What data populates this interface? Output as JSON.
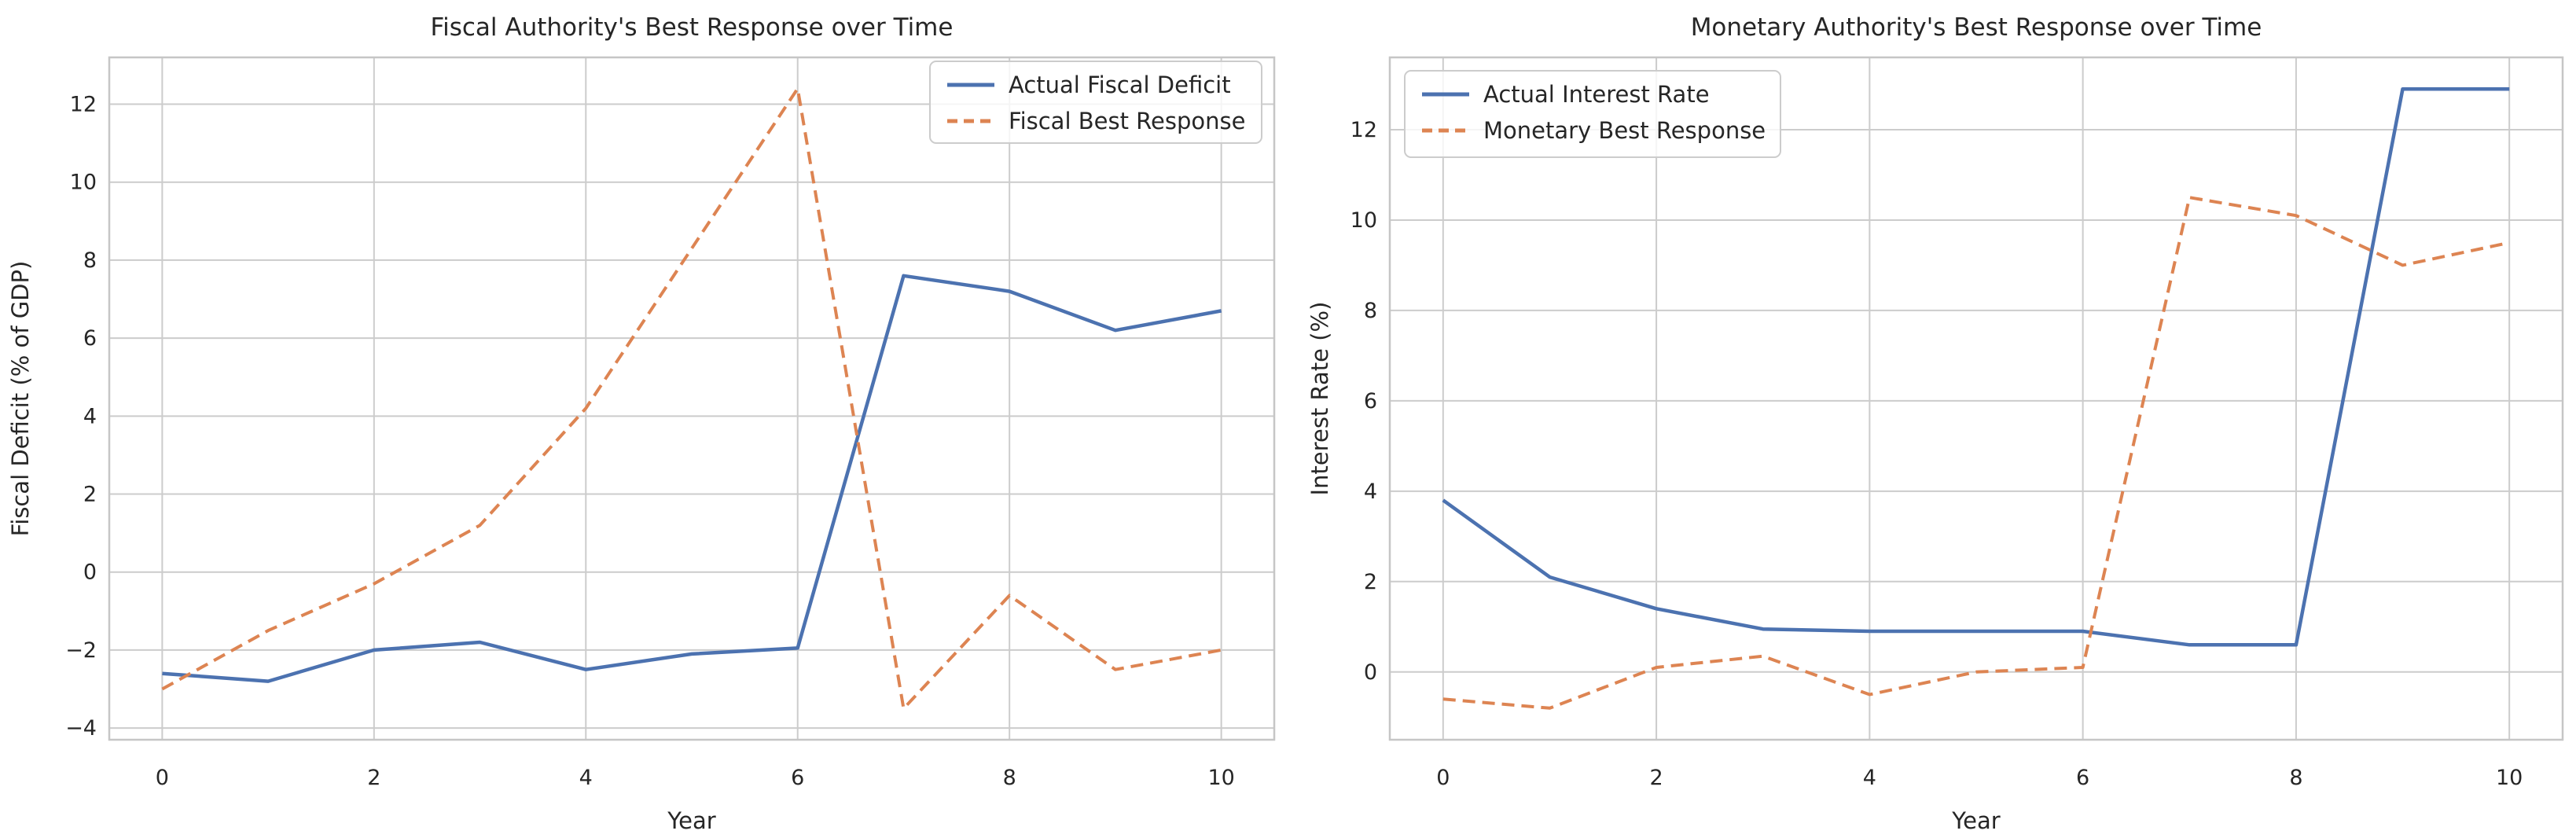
{
  "colors": {
    "blue": "#4C72B0",
    "orange": "#DD8452",
    "grid": "#cccccc",
    "spine": "#c6c6c6",
    "text": "#262626",
    "legend_border": "#cccccc",
    "background": "#ffffff"
  },
  "chart_data": [
    {
      "type": "line",
      "title": "Fiscal Authority's Best Response over Time",
      "xlabel": "Year",
      "ylabel": "Fiscal Deficit (% of GDP)",
      "x": [
        0,
        1,
        2,
        3,
        4,
        5,
        6,
        7,
        8,
        9,
        10
      ],
      "xlim": [
        -0.5,
        10.5
      ],
      "ylim": [
        -4.3,
        13.2
      ],
      "xticks": [
        0,
        2,
        4,
        6,
        8,
        10
      ],
      "xtick_labels": [
        "0",
        "2",
        "4",
        "6",
        "8",
        "10"
      ],
      "yticks": [
        -4,
        -2,
        0,
        2,
        4,
        6,
        8,
        10,
        12
      ],
      "ytick_labels": [
        "−4",
        "−2",
        "0",
        "2",
        "4",
        "6",
        "8",
        "10",
        "12"
      ],
      "grid": true,
      "legend_position": "upper right",
      "series": [
        {
          "name": "Actual Fiscal Deficit",
          "style": "solid",
          "color_key": "blue",
          "values": [
            -2.6,
            -2.8,
            -2.0,
            -1.8,
            -2.5,
            -2.1,
            -1.95,
            7.6,
            7.2,
            6.2,
            6.7
          ]
        },
        {
          "name": "Fiscal Best Response",
          "style": "dashed",
          "color_key": "orange",
          "values": [
            -3.0,
            -1.5,
            -0.3,
            1.2,
            4.2,
            8.3,
            12.4,
            -3.5,
            -0.6,
            -2.5,
            -2.0
          ]
        }
      ]
    },
    {
      "type": "line",
      "title": "Monetary Authority's Best Response over Time",
      "xlabel": "Year",
      "ylabel": "Interest Rate (%)",
      "x": [
        0,
        1,
        2,
        3,
        4,
        5,
        6,
        7,
        8,
        9,
        10
      ],
      "xlim": [
        -0.5,
        10.5
      ],
      "ylim": [
        -1.5,
        13.6
      ],
      "xticks": [
        0,
        2,
        4,
        6,
        8,
        10
      ],
      "xtick_labels": [
        "0",
        "2",
        "4",
        "6",
        "8",
        "10"
      ],
      "yticks": [
        0,
        2,
        4,
        6,
        8,
        10,
        12
      ],
      "ytick_labels": [
        "0",
        "2",
        "4",
        "6",
        "8",
        "10",
        "12"
      ],
      "grid": true,
      "legend_position": "upper left",
      "series": [
        {
          "name": "Actual Interest Rate",
          "style": "solid",
          "color_key": "blue",
          "values": [
            3.8,
            2.1,
            1.4,
            0.95,
            0.9,
            0.9,
            0.9,
            0.6,
            0.6,
            12.9,
            12.9
          ]
        },
        {
          "name": "Monetary Best Response",
          "style": "dashed",
          "color_key": "orange",
          "values": [
            -0.6,
            -0.8,
            0.1,
            0.35,
            -0.5,
            0.0,
            0.1,
            10.5,
            10.1,
            9.0,
            9.5
          ]
        }
      ]
    }
  ]
}
